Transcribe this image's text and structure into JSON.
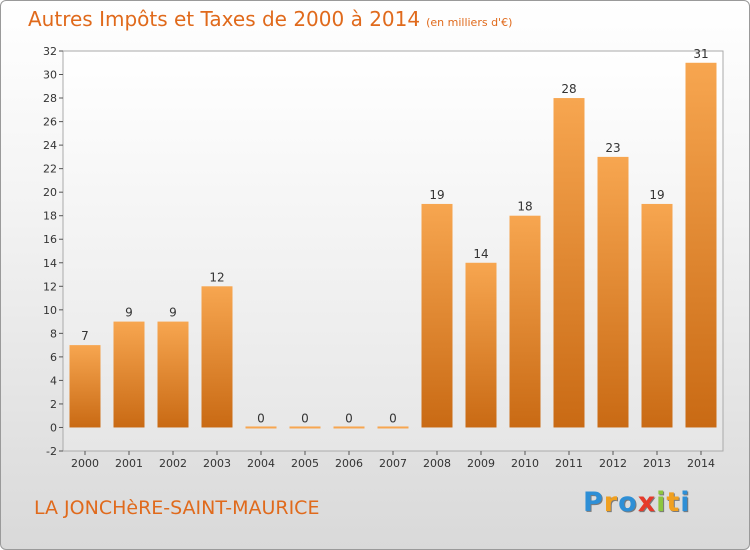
{
  "title": "Autres Impôts et Taxes de 2000 à 2014",
  "subtitle": "(en milliers d'€)",
  "commune": "LA JONCHèRE-SAINT-MAURICE",
  "logo": {
    "letters": [
      "P",
      "r",
      "o",
      "x",
      "i",
      "t",
      "i"
    ],
    "colors": [
      "#2e8fd6",
      "#f0a020",
      "#2e8fd6",
      "#e63a2a",
      "#8cc63e",
      "#f0a020",
      "#2e8fd6"
    ]
  },
  "colors": {
    "bar_top": "#f7a650",
    "bar_bottom": "#c96a14",
    "text_accent": "#e06a1c"
  },
  "chart_data": {
    "type": "bar",
    "categories": [
      "2000",
      "2001",
      "2002",
      "2003",
      "2004",
      "2005",
      "2006",
      "2007",
      "2008",
      "2009",
      "2010",
      "2011",
      "2012",
      "2013",
      "2014"
    ],
    "values": [
      7,
      9,
      9,
      12,
      0,
      0,
      0,
      0,
      19,
      14,
      18,
      28,
      23,
      19,
      31
    ],
    "ylim": [
      -2,
      32
    ],
    "yticks": [
      -2,
      0,
      2,
      4,
      6,
      8,
      10,
      12,
      14,
      16,
      18,
      20,
      22,
      24,
      26,
      28,
      30,
      32
    ],
    "grid": false,
    "data_labels": true
  }
}
